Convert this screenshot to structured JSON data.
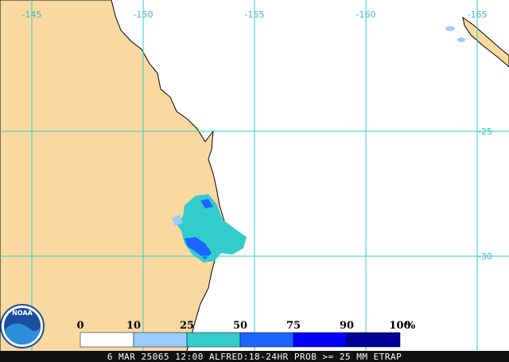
{
  "map": {
    "lon_labels": [
      -145,
      -150,
      -155,
      -160,
      -165
    ],
    "lat_labels": [
      -25,
      -30
    ],
    "logo": "NOAA",
    "legend": {
      "labels": [
        0,
        10,
        25,
        50,
        75,
        90,
        100
      ],
      "unit": "%",
      "colors": [
        "#ffffff",
        "#99ccff",
        "#33cccc",
        "#1a66ff",
        "#0000ff",
        "#000099"
      ]
    },
    "caption": "6 MAR 25065 12:00 ALFRED:18-24HR PROB >= 25 MM ETRAP"
  }
}
